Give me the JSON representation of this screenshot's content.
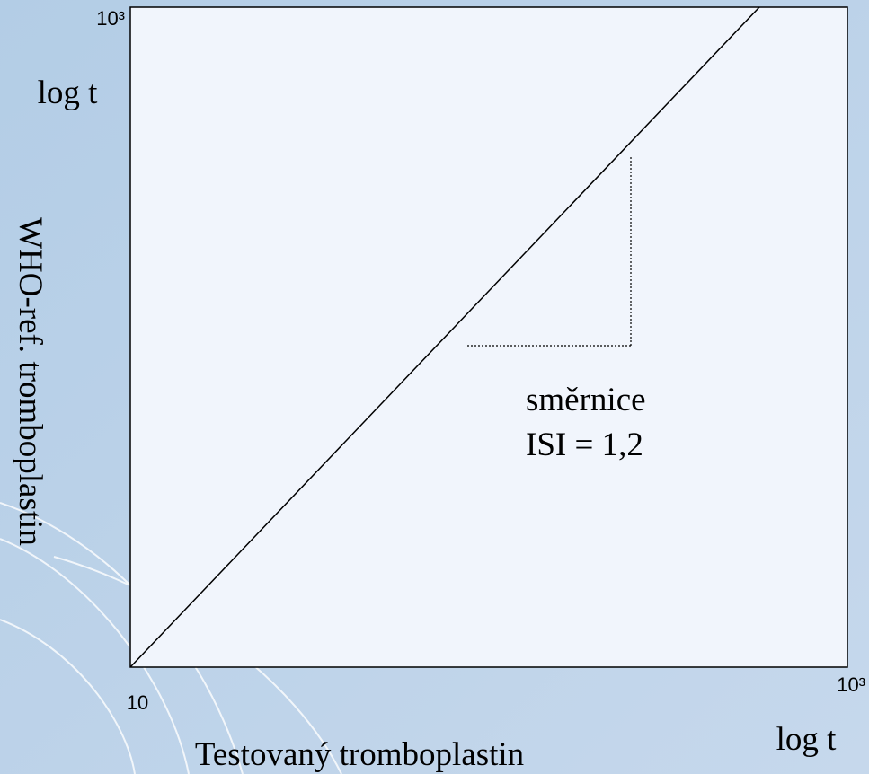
{
  "chart_data": {
    "type": "line",
    "x": [
      10,
      568
    ],
    "values": [
      10,
      1000
    ],
    "color": "#000000",
    "xlim": [
      10,
      1000
    ],
    "ylim": [
      10,
      1000
    ],
    "xscale": "log",
    "yscale": "log",
    "xticks": [
      10,
      {
        "value": 1000,
        "label": "10³"
      }
    ],
    "yticks": [
      {
        "value": 1000,
        "label": "10³"
      }
    ],
    "x_label": "Testovaný tromboplastin",
    "x_unit": "log t",
    "y_label": "WHO-ref. tromboplastin",
    "y_unit": "log t",
    "annotations": [
      "směrnice",
      "ISI = 1,2"
    ]
  }
}
